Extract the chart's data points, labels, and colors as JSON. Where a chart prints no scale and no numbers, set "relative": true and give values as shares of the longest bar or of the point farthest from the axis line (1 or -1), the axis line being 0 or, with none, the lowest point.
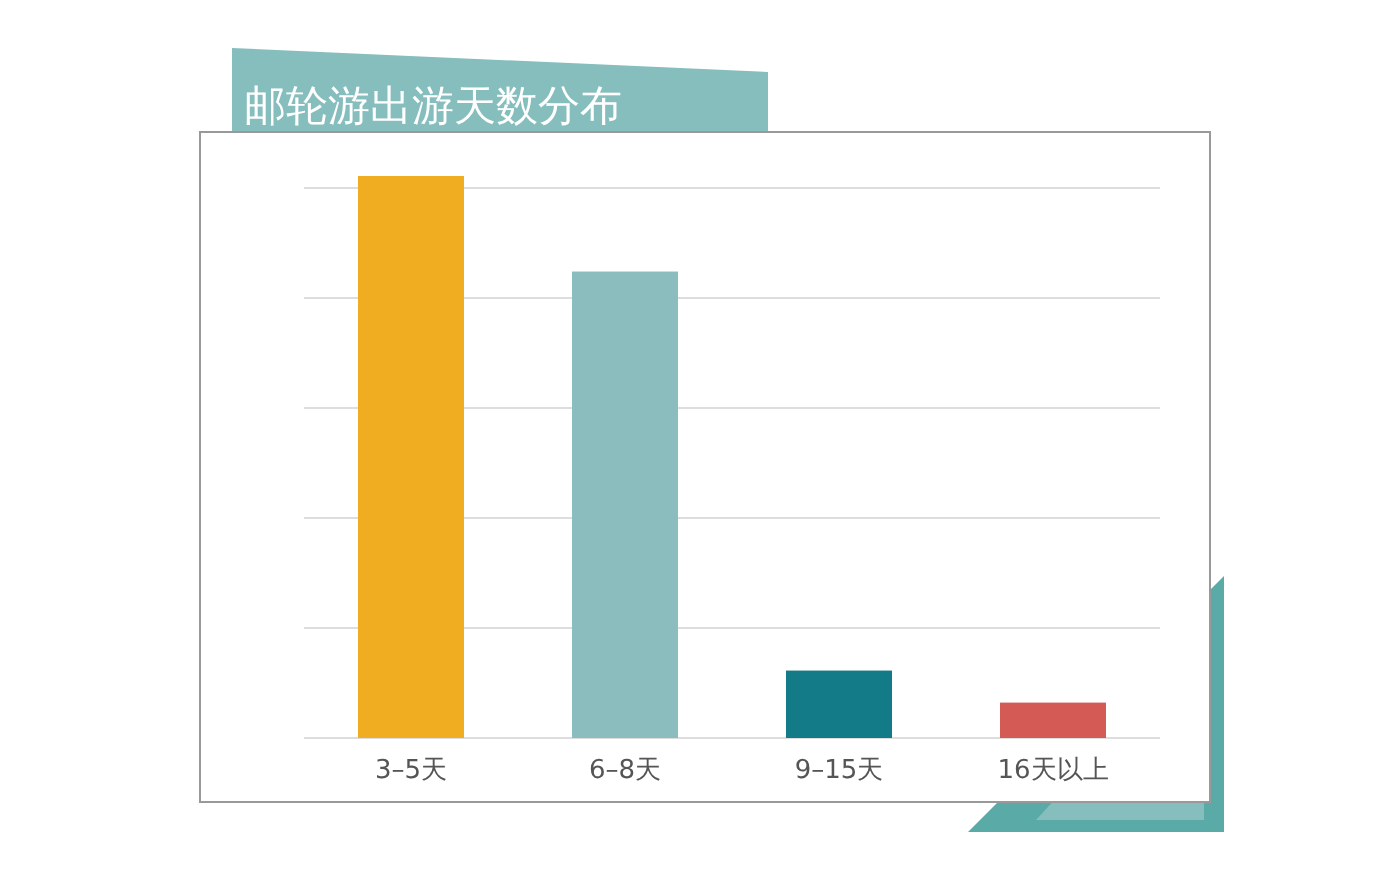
{
  "chart_data": {
    "type": "bar",
    "title": "邮轮游出游天数分布",
    "relative": true,
    "grid": "y",
    "categories": [
      "3–5天",
      "6–8天",
      "9–15天",
      "16天以上"
    ],
    "values": [
      1,
      0.83,
      0.12,
      0.063
    ],
    "colors": [
      "#f0ad22",
      "#8bbdbe",
      "#137a87",
      "#d35a55"
    ]
  }
}
